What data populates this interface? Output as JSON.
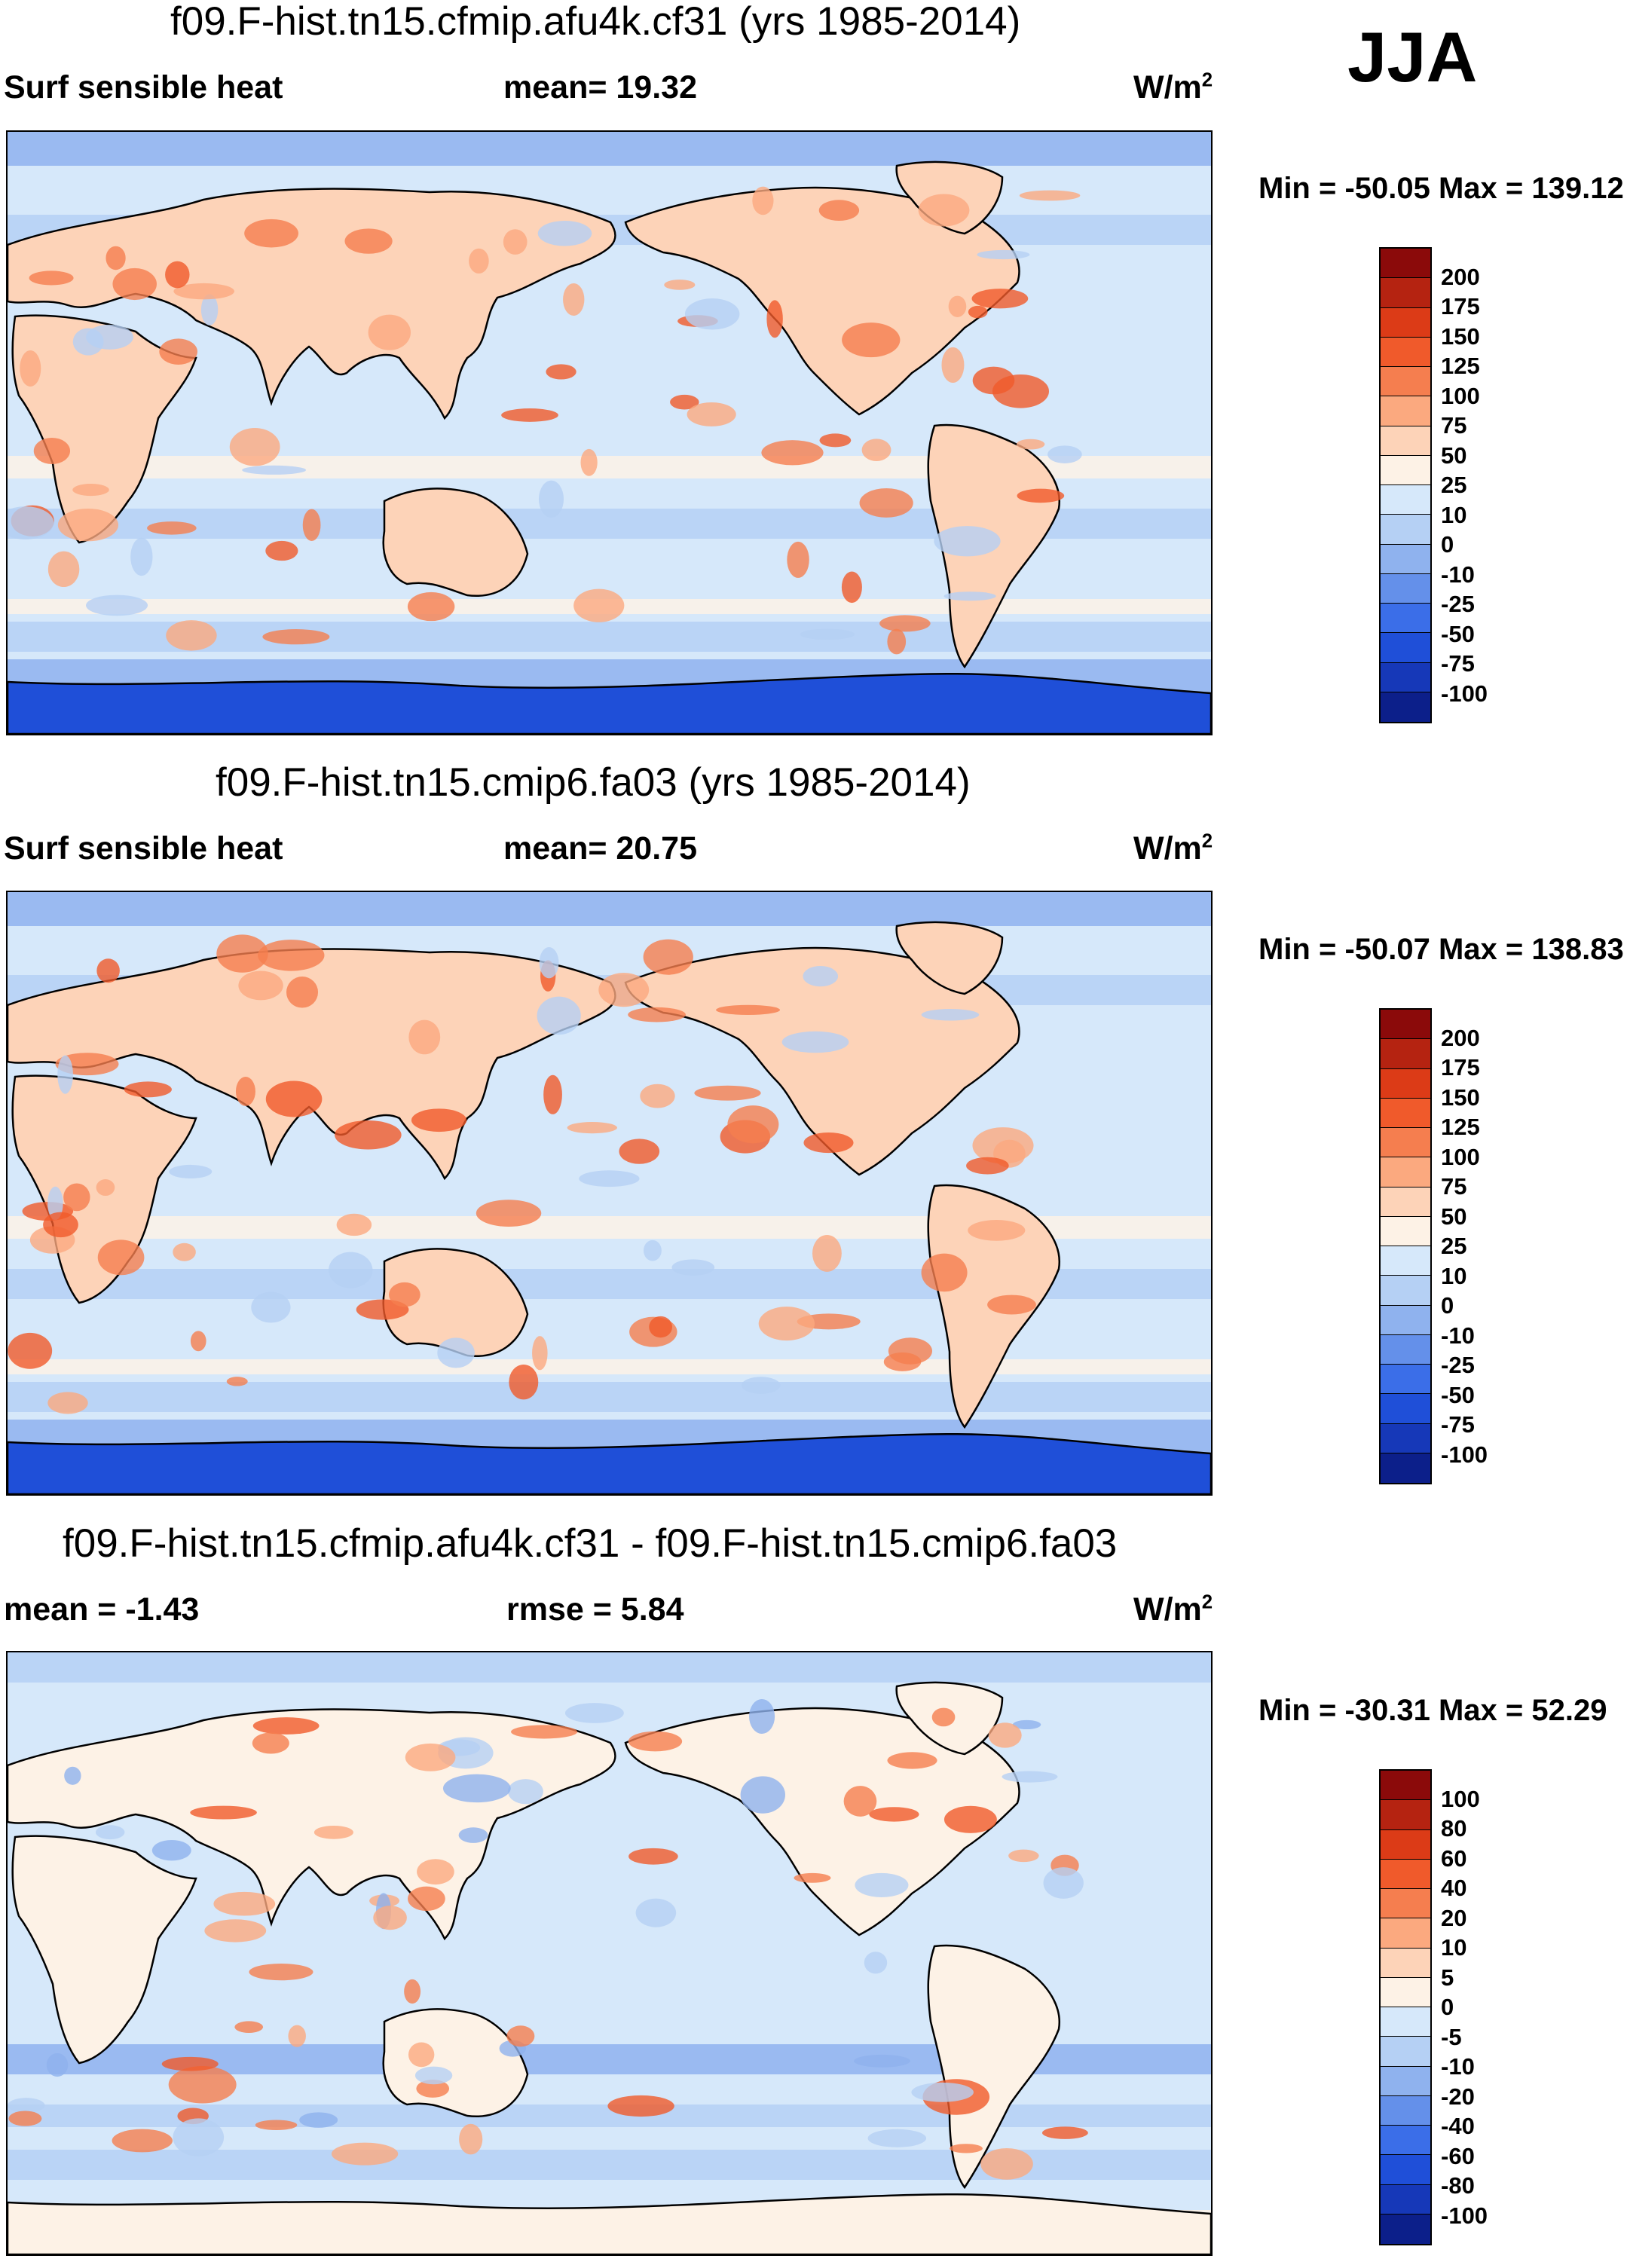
{
  "season": "JJA",
  "panels": [
    {
      "title": "f09.F-hist.tn15.cfmip.afu4k.cf31 (yrs 1985-2014)",
      "left_label": "Surf sensible heat",
      "center_label": "mean=  19.32",
      "units": "W/m",
      "units_sup": "2",
      "minmax": "Min = -50.05 Max = 139.12",
      "colorbar": {
        "labels": [
          "200",
          "175",
          "150",
          "125",
          "100",
          "75",
          "50",
          "25",
          "10",
          "0",
          "-10",
          "-25",
          "-50",
          "-75",
          "-100"
        ],
        "colors": [
          "#8b0a0a",
          "#b52311",
          "#dc3b17",
          "#f05a2b",
          "#f57e4f",
          "#fba97f",
          "#fdd3b8",
          "#fdf2e6",
          "#d6e8fa",
          "#b5d0f4",
          "#8fb2ee",
          "#6490ea",
          "#3b6ee8",
          "#1f4fd8",
          "#1638b8",
          "#0c1f8a"
        ]
      },
      "map_style": "abs"
    },
    {
      "title": "f09.F-hist.tn15.cmip6.fa03 (yrs 1985-2014)",
      "left_label": "Surf sensible heat",
      "center_label": "mean=  20.75",
      "units": "W/m",
      "units_sup": "2",
      "minmax": "Min = -50.07 Max = 138.83",
      "colorbar": {
        "labels": [
          "200",
          "175",
          "150",
          "125",
          "100",
          "75",
          "50",
          "25",
          "10",
          "0",
          "-10",
          "-25",
          "-50",
          "-75",
          "-100"
        ],
        "colors": [
          "#8b0a0a",
          "#b52311",
          "#dc3b17",
          "#f05a2b",
          "#f57e4f",
          "#fba97f",
          "#fdd3b8",
          "#fdf2e6",
          "#d6e8fa",
          "#b5d0f4",
          "#8fb2ee",
          "#6490ea",
          "#3b6ee8",
          "#1f4fd8",
          "#1638b8",
          "#0c1f8a"
        ]
      },
      "map_style": "abs"
    },
    {
      "title": "f09.F-hist.tn15.cfmip.afu4k.cf31 - f09.F-hist.tn15.cmip6.fa03",
      "left_label": "mean =  -1.43",
      "center_label": "rmse =    5.84",
      "units": "W/m",
      "units_sup": "2",
      "minmax": "Min = -30.31 Max =  52.29",
      "colorbar": {
        "labels": [
          "100",
          "80",
          "60",
          "40",
          "20",
          "10",
          "5",
          "0",
          "-5",
          "-10",
          "-20",
          "-40",
          "-60",
          "-80",
          "-100"
        ],
        "colors": [
          "#8b0a0a",
          "#b52311",
          "#dc3b17",
          "#f05a2b",
          "#f57e4f",
          "#fba97f",
          "#fdd3b8",
          "#fdf2e6",
          "#d6e8fa",
          "#b5d0f4",
          "#8fb2ee",
          "#6490ea",
          "#3b6ee8",
          "#1f4fd8",
          "#1638b8",
          "#0c1f8a"
        ]
      },
      "map_style": "diff"
    }
  ]
}
